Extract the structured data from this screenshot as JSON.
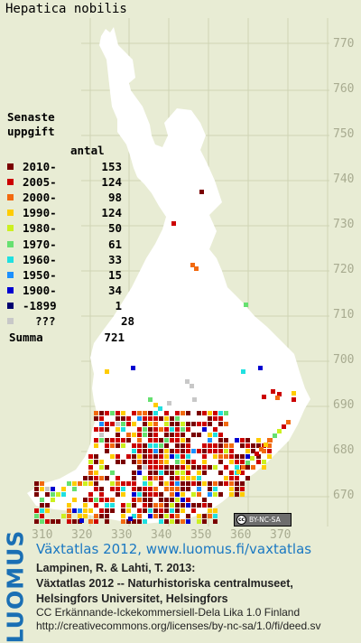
{
  "species_name": "Hepatica nobilis",
  "legend": {
    "title_line1": "Senaste",
    "title_line2": "uppgift",
    "count_header": "antal",
    "entries": [
      {
        "label": "2010-",
        "count": "153",
        "color": "#7a0000"
      },
      {
        "label": "2005-",
        "count": "124",
        "color": "#cc0000"
      },
      {
        "label": "2000-",
        "count": "98",
        "color": "#f26a10"
      },
      {
        "label": "1990-",
        "count": "124",
        "color": "#ffcc00"
      },
      {
        "label": "1980-",
        "count": "50",
        "color": "#ccf020"
      },
      {
        "label": "1970-",
        "count": "61",
        "color": "#66e070"
      },
      {
        "label": "1960-",
        "count": "33",
        "color": "#20e0e0"
      },
      {
        "label": "1950-",
        "count": "15",
        "color": "#1c90ff"
      },
      {
        "label": "1900-",
        "count": "34",
        "color": "#0000d0"
      },
      {
        "label": "-1899",
        "count": "1",
        "color": "#000070"
      },
      {
        "label": "???",
        "count": "28",
        "color": "#c8c8c8"
      }
    ],
    "summa_label": "Summa",
    "summa_count": "721"
  },
  "grid_labels": {
    "northing": [
      "770",
      "760",
      "750",
      "740",
      "730",
      "720",
      "710",
      "700",
      "690",
      "680",
      "670"
    ],
    "easting": [
      "310",
      "320",
      "330",
      "340",
      "350",
      "360",
      "370"
    ]
  },
  "license_badge": "BY-NC-SA",
  "footer": {
    "logo": "LUOMUS",
    "atlas_title": "Växtatlas 2012, www.luomus.fi/vaxtatlas",
    "citation_line1": "Lampinen, R. & Lahti, T. 2013:",
    "citation_line2": "Växtatlas 2012 -- Naturhistoriska centralmuseet,",
    "citation_line3": "Helsingfors Universitet, Helsingfors",
    "license_line1": "CC Erkännande-Ickekommersiell-Dela Lika 1.0 Finland",
    "license_line2": "http://creativecommons.org/licenses/by-nc-sa/1.0/fi/deed.sv"
  }
}
